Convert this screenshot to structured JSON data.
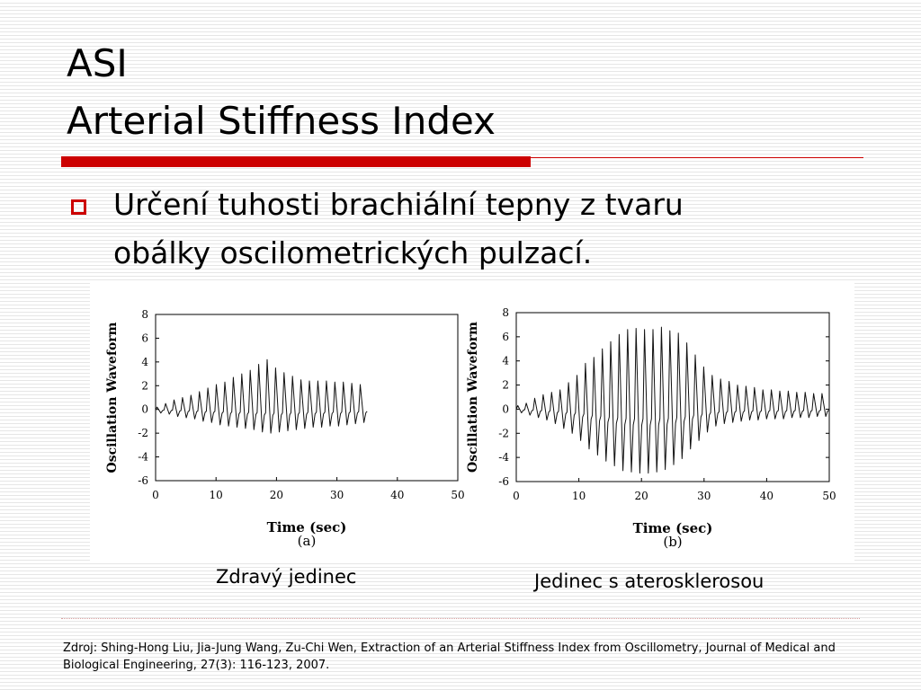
{
  "slide": {
    "title_line1": "ASI",
    "title_line2": "Arterial Stiffness Index",
    "bullet_line1": "Určení tuhosti brachiální tepny z tvaru",
    "bullet_line2": "obálky oscilometrických pulzací.",
    "caption_a": "Zdravý jedinec",
    "caption_b": "Jedinec s aterosklerosou",
    "source": "Zdroj: Shing-Hong Liu, Jia-Jung Wang, Zu-Chi Wen, Extraction of an Arterial Stiffness Index from Oscillometry, Journal of Medical  and Biological Engineering, 27(3): 116-123, 2007.",
    "accent_color": "#cc0000"
  },
  "chart_data": [
    {
      "type": "line",
      "xlabel": "Time (sec)",
      "ylabel": "Oscillation Waveform",
      "sublabel": "(a)",
      "xlim": [
        0,
        50
      ],
      "ylim": [
        -6,
        8
      ],
      "xticks": [
        0,
        10,
        20,
        30,
        40,
        50
      ],
      "yticks": [
        8,
        6,
        4,
        2,
        0,
        -2,
        -4,
        -6
      ],
      "series": [
        {
          "x": [
            0,
            1.4,
            2.8,
            4.2,
            5.6,
            7.0,
            8.4,
            9.8,
            11.2,
            12.6,
            14.0,
            15.4,
            16.8,
            18.2,
            19.6,
            21.0,
            22.4,
            23.8,
            25.2,
            26.6,
            28.0,
            29.4,
            30.8,
            32.2,
            33.6
          ],
          "peaks": [
            0.2,
            0.5,
            0.8,
            1.0,
            1.2,
            1.5,
            1.8,
            2.1,
            2.3,
            2.7,
            3.0,
            3.3,
            3.8,
            4.2,
            3.5,
            3.1,
            2.8,
            2.5,
            2.4,
            2.4,
            2.4,
            2.3,
            2.3,
            2.2,
            2.1
          ],
          "troughs": [
            -0.3,
            -0.4,
            -0.6,
            -0.7,
            -0.8,
            -1.0,
            -1.1,
            -1.3,
            -1.4,
            -1.5,
            -1.6,
            -1.7,
            -1.9,
            -2.0,
            -1.9,
            -1.8,
            -1.7,
            -1.6,
            -1.5,
            -1.5,
            -1.4,
            -1.4,
            -1.3,
            -1.2,
            -1.1
          ]
        }
      ]
    },
    {
      "type": "line",
      "xlabel": "Time (sec)",
      "ylabel": "Oscillation Waveform",
      "sublabel": "(b)",
      "xlim": [
        0,
        50
      ],
      "ylim": [
        -6,
        8
      ],
      "xticks": [
        0,
        10,
        20,
        30,
        40,
        50
      ],
      "yticks": [
        8,
        6,
        4,
        2,
        0,
        -2,
        -4,
        -6
      ],
      "series": [
        {
          "x": [
            0,
            1.35,
            2.7,
            4.05,
            5.4,
            6.75,
            8.1,
            9.45,
            10.8,
            12.15,
            13.5,
            14.85,
            16.2,
            17.55,
            18.9,
            20.25,
            21.6,
            22.95,
            24.3,
            25.65,
            27.0,
            28.35,
            29.7,
            31.05,
            32.4,
            33.75,
            35.1,
            36.45,
            37.8,
            39.15,
            40.5,
            41.85,
            43.2,
            44.55,
            45.9,
            47.25,
            48.6
          ],
          "peaks": [
            0.3,
            0.5,
            0.9,
            1.2,
            1.4,
            1.6,
            2.2,
            2.8,
            3.8,
            4.3,
            5.0,
            5.6,
            6.2,
            6.6,
            6.7,
            6.6,
            6.6,
            6.8,
            6.5,
            6.3,
            5.5,
            4.5,
            3.5,
            2.8,
            2.5,
            2.3,
            2.0,
            1.9,
            1.8,
            1.6,
            1.6,
            1.5,
            1.5,
            1.4,
            1.4,
            1.3,
            1.3
          ],
          "troughs": [
            -0.3,
            -0.5,
            -0.7,
            -0.9,
            -1.2,
            -1.6,
            -2.0,
            -2.6,
            -3.3,
            -3.8,
            -4.3,
            -4.7,
            -5.1,
            -5.2,
            -5.3,
            -5.3,
            -5.2,
            -5.0,
            -4.6,
            -4.1,
            -3.3,
            -2.6,
            -1.9,
            -1.4,
            -1.2,
            -1.1,
            -1.0,
            -0.9,
            -0.9,
            -0.8,
            -0.8,
            -0.8,
            -0.7,
            -0.7,
            -0.7,
            -0.6,
            -0.6
          ]
        }
      ]
    }
  ]
}
